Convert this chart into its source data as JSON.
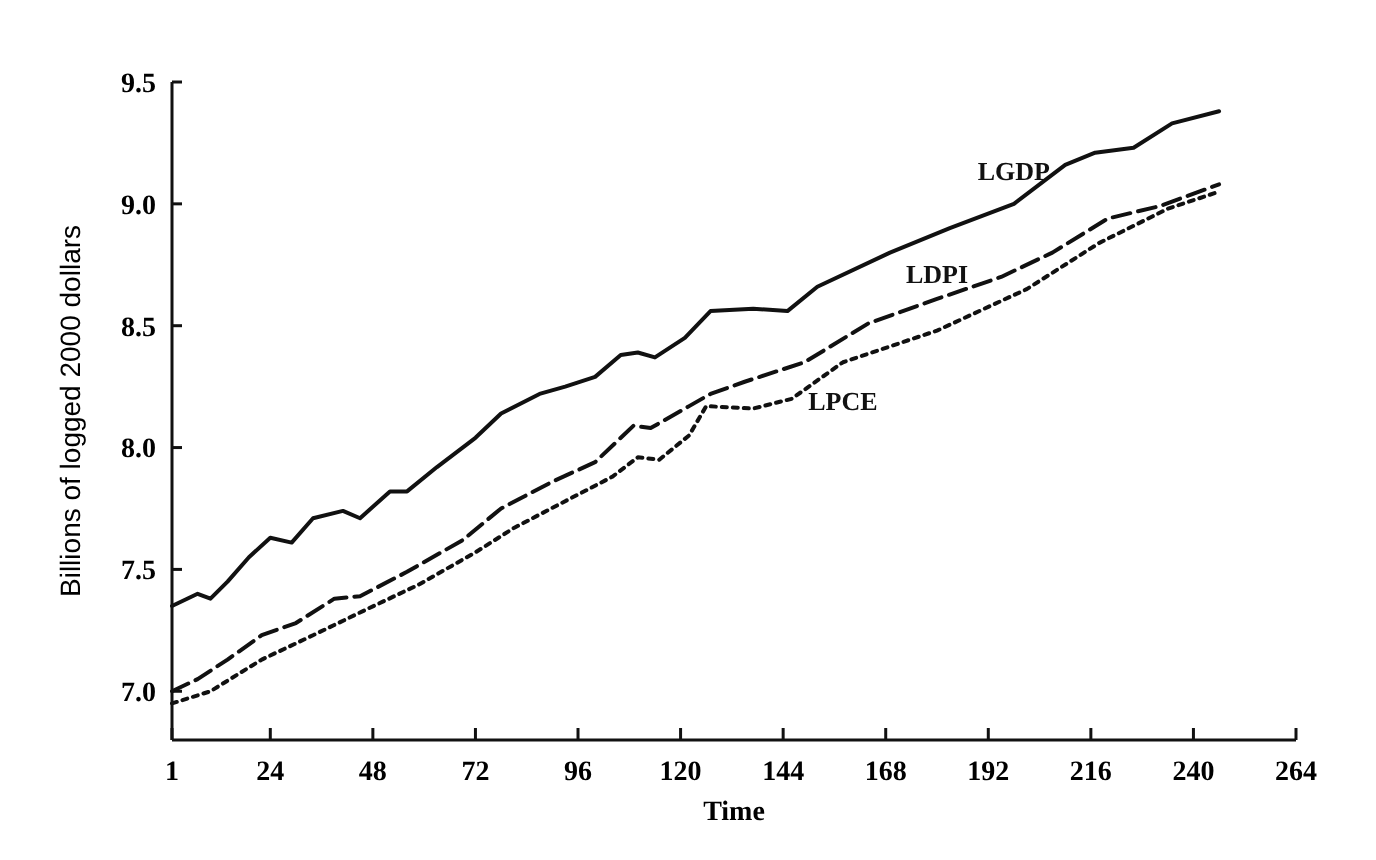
{
  "chart_data": {
    "type": "line",
    "xlabel": "Time",
    "ylabel": "Billions of logged 2000 dollars",
    "xlim": [
      1,
      264
    ],
    "xticks": [
      1,
      24,
      48,
      72,
      96,
      120,
      144,
      168,
      192,
      216,
      240,
      264
    ],
    "ylim": [
      6.8,
      9.5
    ],
    "yticks": [
      {
        "value": 7,
        "label": "7.0"
      },
      7.5,
      {
        "value": 8,
        "label": "8.0"
      },
      8.5,
      {
        "value": 9,
        "label": "9.0"
      },
      9.5
    ],
    "grid": false,
    "legend": false,
    "marker": "none",
    "series": [
      {
        "name": "LGDP",
        "color": "#111111",
        "line_style": "solid",
        "x": [
          1,
          7,
          10,
          14,
          19,
          24,
          29,
          34,
          41,
          45,
          52,
          56,
          63,
          72,
          78,
          87,
          93,
          100,
          106,
          110,
          114,
          121,
          127,
          137,
          145,
          152,
          169,
          183,
          198,
          210,
          217,
          226,
          235,
          246
        ],
        "values": [
          7.35,
          7.4,
          7.38,
          7.45,
          7.55,
          7.63,
          7.61,
          7.71,
          7.74,
          7.71,
          7.82,
          7.82,
          7.92,
          8.04,
          8.14,
          8.22,
          8.25,
          8.29,
          8.38,
          8.39,
          8.37,
          8.45,
          8.56,
          8.57,
          8.56,
          8.66,
          8.8,
          8.9,
          9.0,
          9.16,
          9.21,
          9.23,
          9.33,
          9.38
        ]
      },
      {
        "name": "LDPI",
        "color": "#111111",
        "line_style": "dashed",
        "x": [
          1,
          7,
          14,
          22,
          30,
          39,
          45,
          56,
          69,
          78,
          90,
          100,
          109,
          113,
          122,
          127,
          135,
          149,
          164,
          180,
          195,
          207,
          220,
          232,
          246
        ],
        "values": [
          7.0,
          7.05,
          7.13,
          7.23,
          7.28,
          7.38,
          7.39,
          7.49,
          7.62,
          7.75,
          7.86,
          7.94,
          8.09,
          8.08,
          8.17,
          8.22,
          8.27,
          8.35,
          8.51,
          8.61,
          8.7,
          8.8,
          8.94,
          8.99,
          9.08
        ]
      },
      {
        "name": "LPCE",
        "color": "#111111",
        "line_style": "dotted",
        "x": [
          1,
          10,
          22,
          34,
          47,
          59,
          72,
          81,
          93,
          104,
          110,
          115,
          122,
          126,
          137,
          146,
          158,
          180,
          201,
          218,
          234,
          246
        ],
        "values": [
          6.95,
          7.0,
          7.13,
          7.23,
          7.34,
          7.44,
          7.57,
          7.67,
          7.78,
          7.88,
          7.96,
          7.95,
          8.05,
          8.17,
          8.16,
          8.2,
          8.35,
          8.48,
          8.65,
          8.84,
          8.98,
          9.05
        ]
      }
    ]
  }
}
